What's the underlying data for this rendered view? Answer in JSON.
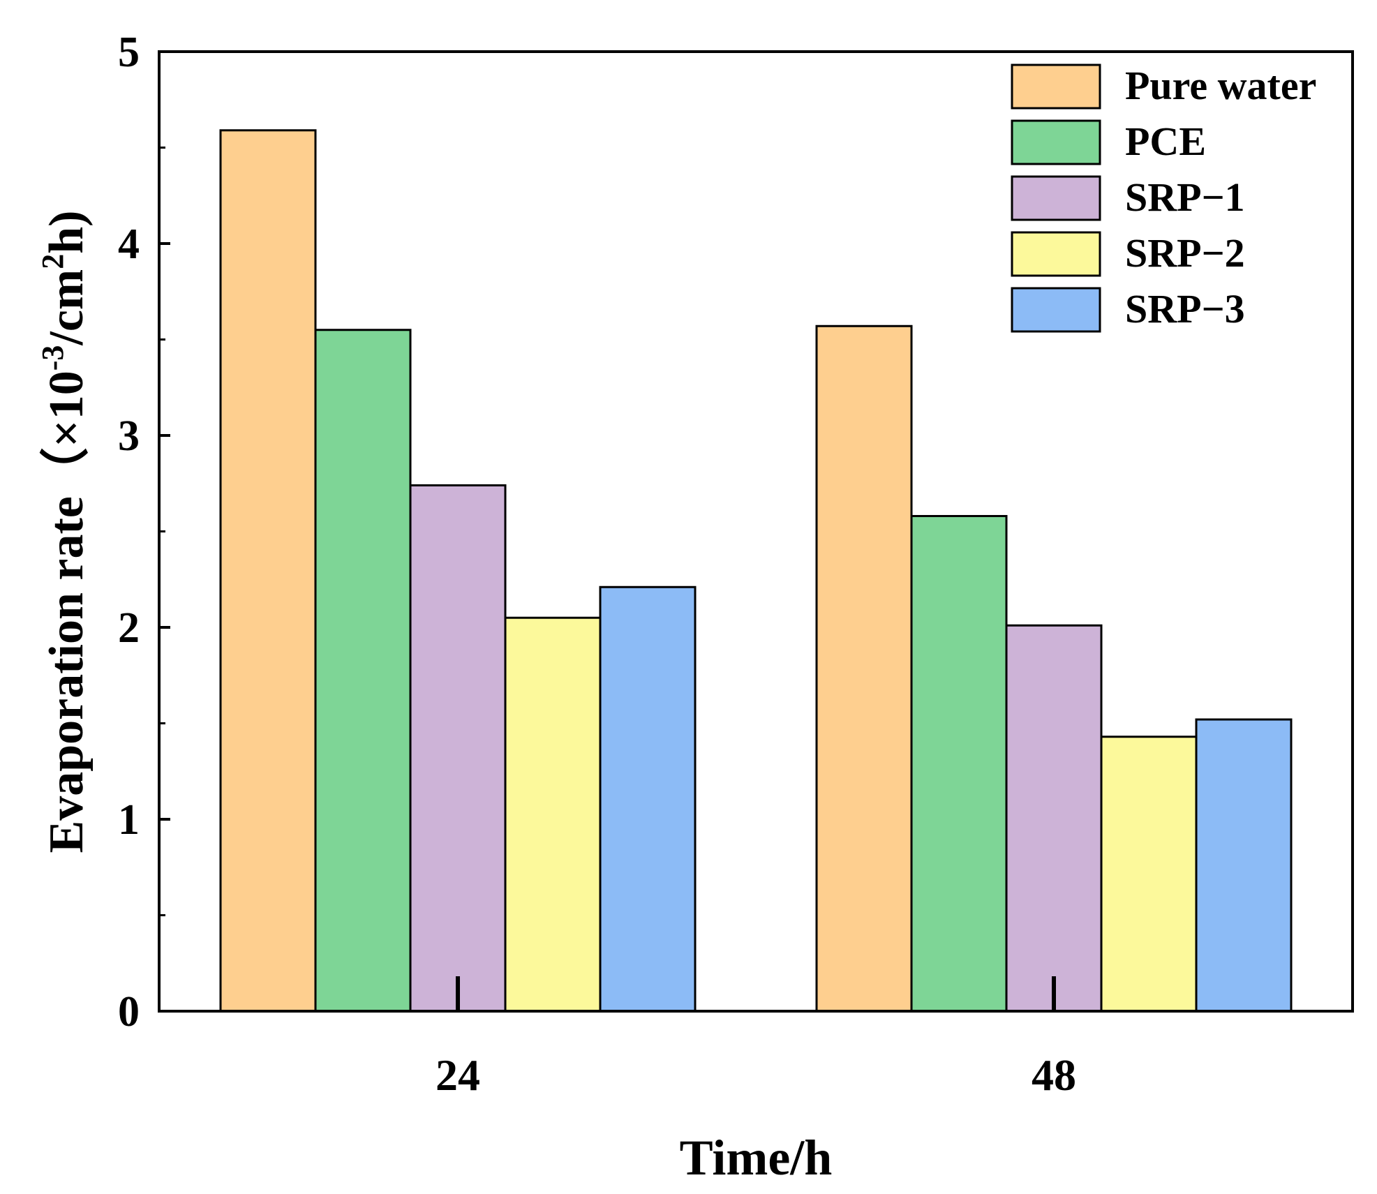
{
  "chart_data": {
    "type": "bar",
    "title": "",
    "categories": [
      "24",
      "48"
    ],
    "series": [
      {
        "name": "Pure water",
        "color": "#FECF8F",
        "values": [
          4.59,
          3.57
        ]
      },
      {
        "name": "PCE",
        "color": "#7ED596",
        "values": [
          3.55,
          2.58
        ]
      },
      {
        "name": "SRP−1",
        "color": "#CDB3D7",
        "values": [
          2.74,
          2.01
        ]
      },
      {
        "name": "SRP−2",
        "color": "#FCF99B",
        "values": [
          2.05,
          1.43
        ]
      },
      {
        "name": "SRP−3",
        "color": "#8CBBF6",
        "values": [
          2.21,
          1.52
        ]
      }
    ],
    "xlabel": "Time/h",
    "ylabel": {
      "prefix": "Evaporation rate（×10",
      "exponent_1": "-3",
      "middle": "/cm",
      "exponent_2": "2",
      "suffix": "h)"
    },
    "ylim": [
      0,
      5
    ],
    "yticks": [
      "0",
      "1",
      "2",
      "3",
      "4",
      "5"
    ],
    "grid": false,
    "legend_position": "top-right"
  }
}
